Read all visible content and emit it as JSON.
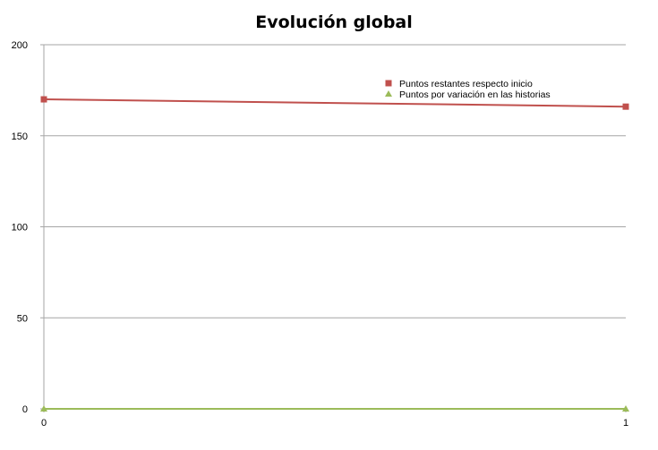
{
  "chart_data": {
    "type": "line",
    "title": "Evolución global",
    "xlabel": "",
    "ylabel": "",
    "x": [
      0,
      1
    ],
    "xticks": [
      "0",
      "1"
    ],
    "ylim": [
      0,
      200
    ],
    "yticks": [
      "0",
      "50",
      "100",
      "150",
      "200"
    ],
    "grid": true,
    "legend_position": "top-right",
    "series": [
      {
        "name": "Puntos restantes respecto inicio",
        "values": [
          170,
          166
        ],
        "color": "#c0504d",
        "marker": "square"
      },
      {
        "name": "Puntos por variación en las historias",
        "values": [
          0,
          0
        ],
        "color": "#9bbb59",
        "marker": "triangle"
      }
    ]
  }
}
